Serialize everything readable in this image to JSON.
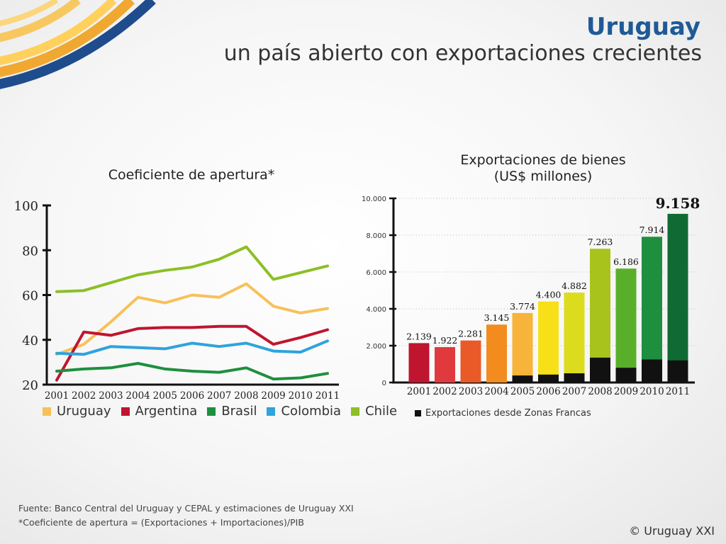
{
  "header": {
    "title": "Uruguay",
    "subtitle": "un país abierto con exportaciones crecientes"
  },
  "chart_data": [
    {
      "type": "line",
      "title": "Coeficiente de apertura*",
      "x": [
        "2001",
        "2002",
        "2003",
        "2004",
        "2005",
        "2006",
        "2007",
        "2008",
        "2009",
        "2010",
        "2011"
      ],
      "ylim": [
        20,
        100
      ],
      "yticks": [
        "20",
        "40",
        "60",
        "80",
        "100"
      ],
      "series": [
        {
          "name": "Uruguay",
          "color": "#f7c15a",
          "values": [
            33.5,
            38,
            48,
            59,
            56.5,
            60,
            59,
            65,
            55,
            52,
            54
          ]
        },
        {
          "name": "Argentina",
          "color": "#c0152f",
          "values": [
            22,
            43.5,
            42,
            45,
            45.5,
            45.5,
            46,
            46,
            38,
            41,
            44.5
          ]
        },
        {
          "name": "Brasil",
          "color": "#1e8f3e",
          "values": [
            26,
            27,
            27.5,
            29.5,
            27,
            26,
            25.5,
            27.5,
            22.5,
            23,
            25
          ]
        },
        {
          "name": "Colombia",
          "color": "#2ea3dc",
          "values": [
            34,
            33.5,
            37,
            36.5,
            36,
            38.5,
            37,
            38.5,
            35,
            34.5,
            39.5
          ]
        },
        {
          "name": "Chile",
          "color": "#8cbf26",
          "values": [
            61.5,
            62,
            65.5,
            69,
            71,
            72.5,
            76,
            81.5,
            67,
            70,
            73
          ]
        }
      ]
    },
    {
      "type": "bar",
      "title": "Exportaciones de bienes",
      "subtitle": "(US$ millones)",
      "categories": [
        "2001",
        "2002",
        "2003",
        "2004",
        "2005",
        "2006",
        "2007",
        "2008",
        "2009",
        "2010",
        "2011"
      ],
      "values": [
        2139,
        1922,
        2281,
        3145,
        3774,
        4400,
        4882,
        7263,
        6186,
        7914,
        9158
      ],
      "labels": [
        "2.139",
        "1.922",
        "2.281",
        "3.145",
        "3.774",
        "4.400",
        "4.882",
        "7.263",
        "6.186",
        "7.914",
        "9.158"
      ],
      "colors": [
        "#c0152f",
        "#e03a3e",
        "#ea5a28",
        "#f28c1e",
        "#f7b33a",
        "#f7e017",
        "#dcdc1e",
        "#a8c41c",
        "#5aaf2a",
        "#1e8f3e",
        "#0f6b33"
      ],
      "zonas_francas": [
        0,
        0,
        0,
        0,
        380,
        430,
        500,
        1350,
        800,
        1250,
        1200
      ],
      "zf_color": "#111111",
      "ylim": [
        0,
        10000
      ],
      "yticks": [
        "0",
        "2.000",
        "4.000",
        "6.000",
        "8.000",
        "10.000"
      ],
      "legend": "Exportaciones desde Zonas Francas"
    }
  ],
  "footer": {
    "source": "Fuente: Banco Central del Uruguay y CEPAL y estimaciones de Uruguay XXI",
    "note": "*Coeficiente de apertura = (Exportaciones + Importaciones)/PIB",
    "copyright": "© Uruguay XXI"
  }
}
